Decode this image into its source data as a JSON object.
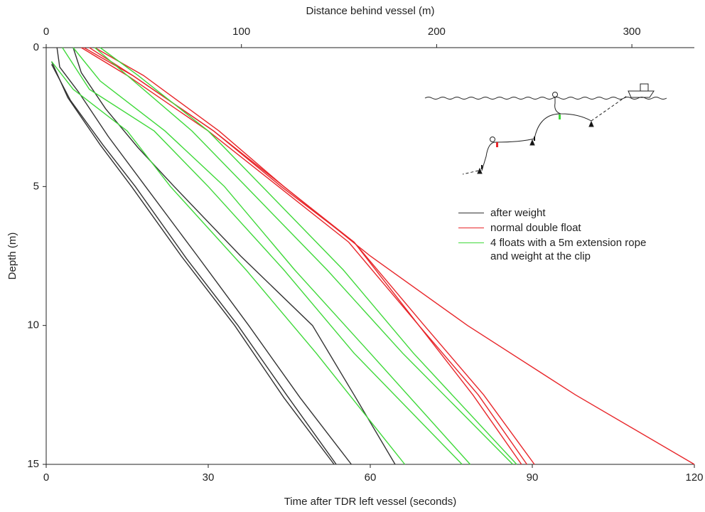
{
  "chart_data": {
    "type": "line",
    "x_label": "Time after TDR left vessel (seconds)",
    "x2_label": "Distance behind vessel (m)",
    "y_label": "Depth (m)",
    "xlim": [
      0,
      120
    ],
    "xticks": [
      0,
      30,
      60,
      90,
      120
    ],
    "x2lim": [
      0,
      332
    ],
    "x2ticks": [
      0,
      100,
      200,
      300
    ],
    "ylim": [
      0,
      15
    ],
    "yticks": [
      0,
      5,
      10,
      15
    ],
    "y_inverted": true,
    "series": [
      {
        "name": "after weight",
        "color": "#333333",
        "lines": [
          {
            "x": [
              1,
              4,
              10,
              15.8,
              25,
              34.9,
              44,
              53.3
            ],
            "values": [
              0.5,
              1.8,
              3.5,
              5,
              7.5,
              10,
              12.6,
              15
            ]
          },
          {
            "x": [
              1,
              4.5,
              10.5,
              16.5,
              26,
              35.5,
              44.5,
              53.7
            ],
            "values": [
              0.6,
              1.9,
              3.5,
              5,
              7.6,
              10,
              12.5,
              15
            ]
          },
          {
            "x": [
              2,
              2.5,
              6,
              11.5,
              18.4,
              28,
              37.5,
              47,
              56.5
            ],
            "values": [
              0,
              0.7,
              1.6,
              3.2,
              5,
              7.5,
              10,
              12.6,
              15
            ]
          },
          {
            "x": [
              5,
              6.5,
              11,
              17,
              23.7,
              36,
              49.3,
              57,
              64.6
            ],
            "values": [
              0,
              0.9,
              2.2,
              3.6,
              5,
              7.5,
              10,
              12.5,
              15
            ]
          }
        ]
      },
      {
        "name": "normal double float",
        "color": "#e8262a",
        "lines": [
          {
            "x": [
              6.5,
              15,
              30,
              43,
              56,
              69,
              80,
              89
            ],
            "values": [
              0,
              1,
              3,
              5,
              7,
              10,
              12.5,
              15
            ]
          },
          {
            "x": [
              7,
              16,
              31,
              43.5,
              57,
              70,
              81,
              90.4
            ],
            "values": [
              0,
              1,
              3,
              5,
              7,
              10,
              12.5,
              15
            ]
          },
          {
            "x": [
              9,
              18,
              32,
              44,
              57,
              69,
              79,
              88
            ],
            "values": [
              0,
              1,
              3,
              5,
              7,
              10,
              12.5,
              15
            ]
          },
          {
            "x": [
              8,
              16,
              31,
              44,
              60,
              78,
              98,
              120
            ],
            "values": [
              0,
              1,
              3,
              5,
              7.5,
              10,
              12.5,
              15
            ]
          }
        ]
      },
      {
        "name": "4 floats with a 5m extension rope\nand weight at the clip",
        "color": "#3fd93a",
        "lines": [
          {
            "x": [
              1,
              5,
              15,
              23,
              37,
              50,
              66.4
            ],
            "values": [
              0.5,
              1.5,
              3,
              5,
              8,
              11,
              15
            ]
          },
          {
            "x": [
              3,
              8,
              20,
              30,
              44,
              57,
              77
            ],
            "values": [
              0,
              1.5,
              3,
              5,
              8,
              11,
              15
            ]
          },
          {
            "x": [
              5,
              10,
              22,
              33,
              46,
              60,
              78.5
            ],
            "values": [
              0,
              1.2,
              3,
              5,
              8,
              11,
              15
            ]
          },
          {
            "x": [
              9,
              15,
              27,
              37,
              52,
              66,
              86.4
            ],
            "values": [
              0,
              1,
              3,
              5,
              8,
              11,
              15
            ]
          },
          {
            "x": [
              10,
              17,
              30,
              40,
              55,
              68,
              87.1
            ],
            "values": [
              0,
              1,
              3,
              5,
              8,
              11,
              15
            ]
          }
        ]
      }
    ]
  }
}
